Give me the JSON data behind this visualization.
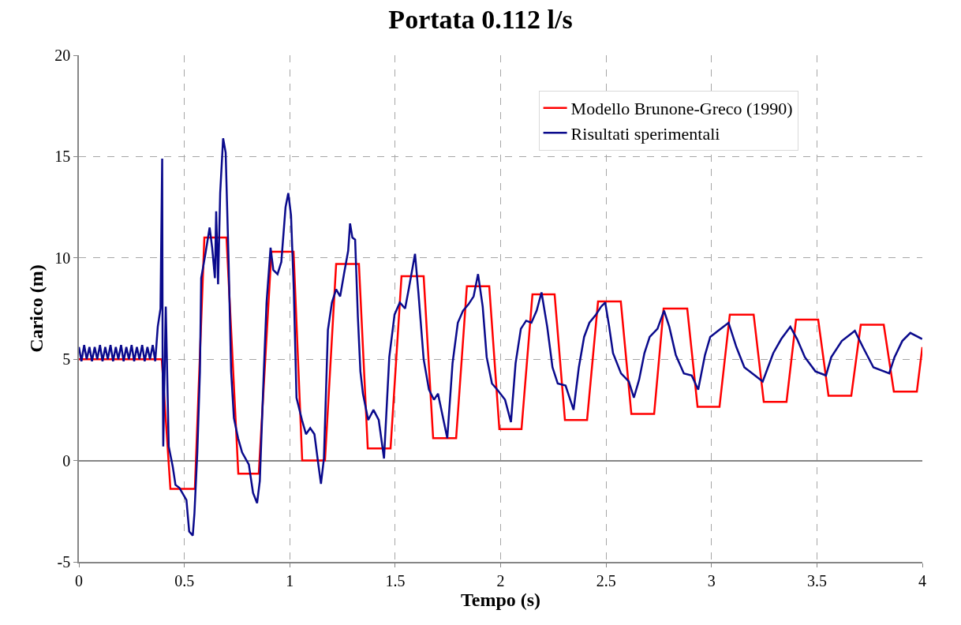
{
  "chart_data": {
    "type": "line",
    "title": "Portata 0.112 l/s",
    "xlabel": "Tempo (s)",
    "ylabel": "Carico (m)",
    "xlim": [
      0,
      4
    ],
    "xticks": [
      0,
      0.5,
      1,
      1.5,
      2,
      2.5,
      3,
      3.5,
      4
    ],
    "ylim": [
      -5,
      20
    ],
    "yticks": [
      -5,
      0,
      5,
      10,
      15,
      20
    ],
    "grid": true,
    "legend": "top right",
    "marker": "none",
    "line_style": "solid",
    "series": [
      {
        "name": "Modello Brunone-Greco (1990)",
        "color": "#ff0000",
        "x": [
          0,
          0.393,
          0.434,
          0.55,
          0.595,
          0.7,
          0.756,
          0.853,
          0.913,
          1.018,
          1.059,
          1.167,
          1.22,
          1.328,
          1.37,
          1.478,
          1.53,
          1.635,
          1.68,
          1.789,
          1.84,
          1.946,
          1.994,
          2.099,
          2.151,
          2.256,
          2.305,
          2.41,
          2.462,
          2.57,
          2.62,
          2.728,
          2.773,
          2.885,
          2.934,
          3.038,
          3.087,
          3.2,
          3.248,
          3.356,
          3.401,
          3.506,
          3.555,
          3.663,
          3.708,
          3.817,
          3.865,
          3.974,
          4
        ],
        "values": [
          5,
          5,
          -1.4,
          -1.4,
          11,
          11,
          -0.65,
          -0.65,
          10.3,
          10.3,
          0,
          0,
          9.7,
          9.7,
          0.6,
          0.6,
          9.1,
          9.1,
          1.1,
          1.1,
          8.6,
          8.6,
          1.55,
          1.55,
          8.2,
          8.2,
          2,
          2,
          7.85,
          7.85,
          2.3,
          2.3,
          7.5,
          7.5,
          2.65,
          2.65,
          7.2,
          7.2,
          2.9,
          2.9,
          6.95,
          6.95,
          3.2,
          3.2,
          6.7,
          6.7,
          3.4,
          3.4,
          5.6
        ]
      },
      {
        "name": "Risultati sperimentali",
        "color": "#0a0a8c",
        "x": [
          0,
          0.012,
          0.025,
          0.037,
          0.05,
          0.062,
          0.075,
          0.087,
          0.1,
          0.112,
          0.125,
          0.137,
          0.15,
          0.162,
          0.175,
          0.187,
          0.2,
          0.212,
          0.225,
          0.237,
          0.25,
          0.262,
          0.275,
          0.287,
          0.3,
          0.312,
          0.325,
          0.337,
          0.35,
          0.362,
          0.374,
          0.387,
          0.395,
          0.397,
          0.4,
          0.412,
          0.426,
          0.445,
          0.458,
          0.477,
          0.51,
          0.523,
          0.54,
          0.548,
          0.5615,
          0.574,
          0.58,
          0.6,
          0.62,
          0.632,
          0.645,
          0.651,
          0.66,
          0.67,
          0.684,
          0.696,
          0.71,
          0.722,
          0.735,
          0.755,
          0.774,
          0.806,
          0.826,
          0.845,
          0.858,
          0.877,
          0.89,
          0.909,
          0.922,
          0.942,
          0.96,
          0.98,
          0.993,
          1.006,
          1.019,
          1.032,
          1.058,
          1.077,
          1.097,
          1.117,
          1.137,
          1.148,
          1.162,
          1.181,
          1.2,
          1.22,
          1.239,
          1.258,
          1.277,
          1.286,
          1.297,
          1.31,
          1.323,
          1.335,
          1.347,
          1.372,
          1.397,
          1.422,
          1.447,
          1.472,
          1.497,
          1.522,
          1.547,
          1.565,
          1.594,
          1.61,
          1.635,
          1.66,
          1.684,
          1.703,
          1.747,
          1.772,
          1.797,
          1.822,
          1.847,
          1.872,
          1.893,
          1.915,
          1.934,
          1.959,
          1.984,
          2.021,
          2.049,
          2.071,
          2.096,
          2.121,
          2.146,
          2.171,
          2.194,
          2.221,
          2.246,
          2.271,
          2.308,
          2.346,
          2.371,
          2.396,
          2.421,
          2.452,
          2.477,
          2.496,
          2.515,
          2.533,
          2.571,
          2.608,
          2.632,
          2.657,
          2.682,
          2.707,
          2.744,
          2.775,
          2.8,
          2.831,
          2.869,
          2.906,
          2.937,
          2.969,
          2.994,
          3.031,
          3.081,
          3.118,
          3.156,
          3.206,
          3.243,
          3.268,
          3.293,
          3.331,
          3.374,
          3.406,
          3.443,
          3.493,
          3.543,
          3.568,
          3.618,
          3.68,
          3.718,
          3.768,
          3.843,
          3.868,
          3.905,
          3.943,
          3.999
        ],
        "values": [
          5.6,
          4.9,
          5.7,
          5,
          5.6,
          4.9,
          5.6,
          5,
          5.7,
          4.9,
          5.6,
          5,
          5.7,
          4.9,
          5.6,
          5,
          5.7,
          4.9,
          5.6,
          5,
          5.7,
          4.9,
          5.6,
          5,
          5.7,
          4.9,
          5.6,
          5,
          5.7,
          4.9,
          6.6,
          7.5,
          14.9,
          5.1,
          0.7,
          7.6,
          0.7,
          -0.3,
          -1.2,
          -1.35,
          -1.95,
          -3.5,
          -3.7,
          -2.6,
          0.4,
          4.4,
          9,
          10.2,
          11.5,
          10.5,
          9,
          12.3,
          8.7,
          13.2,
          15.9,
          15.2,
          9.8,
          4.4,
          2.1,
          1.1,
          0.4,
          -0.2,
          -1.6,
          -2.1,
          -1,
          4.4,
          7.8,
          10.5,
          9.4,
          9.2,
          9.8,
          12.5,
          13.2,
          12.1,
          8.45,
          3.1,
          2,
          1.3,
          1.6,
          1.3,
          -0.3,
          -1.15,
          0.1,
          6.45,
          7.8,
          8.45,
          8.1,
          9.25,
          10.35,
          11.7,
          11,
          10.9,
          7.1,
          4.4,
          3.3,
          2,
          2.5,
          2,
          0.1,
          5.1,
          7.2,
          7.8,
          7.5,
          8.5,
          10.2,
          8.3,
          5,
          3.5,
          3,
          3.3,
          1.1,
          4.8,
          6.8,
          7.4,
          7.7,
          8.1,
          9.2,
          7.6,
          5.1,
          3.8,
          3.5,
          3,
          1.9,
          4.8,
          6.5,
          6.9,
          6.8,
          7.4,
          8.3,
          6.6,
          4.6,
          3.8,
          3.7,
          2.5,
          4.6,
          6.1,
          6.8,
          7.2,
          7.6,
          7.8,
          6.6,
          5.3,
          4.3,
          3.9,
          3.1,
          4,
          5.3,
          6.1,
          6.5,
          7.4,
          6.6,
          5.2,
          4.3,
          4.2,
          3.5,
          5.2,
          6.1,
          6.4,
          6.8,
          5.6,
          4.6,
          4.2,
          3.9,
          4.6,
          5.3,
          6,
          6.6,
          6,
          5.1,
          4.4,
          4.2,
          5.1,
          5.9,
          6.4,
          5.6,
          4.6,
          4.3,
          5.1,
          5.9,
          6.3,
          6
        ]
      }
    ]
  }
}
